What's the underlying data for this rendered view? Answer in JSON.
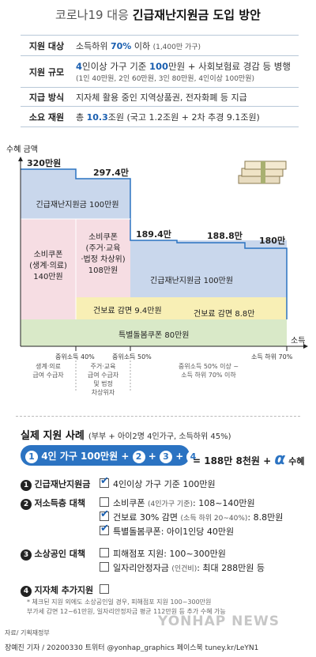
{
  "title": {
    "part1": "코로나19 대응",
    "part2": "긴급재난지원금 도입 방안"
  },
  "info": [
    {
      "label": "지원 대상",
      "value_prefix": "소득하위 ",
      "value_bold": "70%",
      "value_suffix": " 이하",
      "note": "(1,400만 가구)"
    },
    {
      "label": "지원 규모",
      "line1_bold": "4",
      "line1_mid": "인이상 가구 기준 ",
      "line1_bold2": "100",
      "line1_suffix": "만원 + 사회보험료 경감 등 병행",
      "line2": "(1인 40만원, 2인 60만원, 3인 80만원, 4인이상 100만원)"
    },
    {
      "label": "지급 방식",
      "value": "지자체 활용 중인 지역상품권, 전자화폐 등 지급"
    },
    {
      "label": "소요 재원",
      "value_prefix": "총 ",
      "value_bold": "10.3",
      "value_suffix": "조원 (국고 1.2조원 + 2차 추경 9.1조원)"
    }
  ],
  "chart": {
    "ylabel": "수혜 금액",
    "xlabel": "소득",
    "values": {
      "v1": "320만원",
      "v2": "297.4만",
      "v3": "189.4만",
      "v4": "188.8만",
      "v5": "180만"
    },
    "segments": {
      "emergency1": "긴급재난지원금 100만원",
      "emergency2": "긴급재난지원금 100만원",
      "coupon1": "소비쿠폰",
      "coupon1b": "(생계·의료)",
      "coupon1c": "140만원",
      "coupon2a": "소비쿠폰",
      "coupon2b": "(주거·교육",
      "coupon2c": "·법정 차상위)",
      "coupon2d": "108만원",
      "health1": "건보료 감면 9.4만원",
      "health2": "건보료 감면 8.8만",
      "care": "특별돌봄쿠폰 80만원"
    },
    "ticks": {
      "t1": "중위소득 40%",
      "t2": "중위소득 50%",
      "t3": "소득 하위 70%"
    },
    "groups": {
      "g1": [
        "생계·의료",
        "급여 수급자"
      ],
      "g2": [
        "주거·교육",
        "급여 수급자",
        "및 법정",
        "차상위자"
      ],
      "g3": [
        "중위소득 50% 이상 ~",
        "소득 하위 70% 이하"
      ]
    }
  },
  "example": {
    "title": "실제 지원 사례",
    "subtitle": "(부부 + 아이2명 4인가구, 소득하위 45%)",
    "f1": "1",
    "f1_text": "4인 가구 100만원 +",
    "f2": "2",
    "f3": "3",
    "f4": "4",
    "plus": "+",
    "result": "= 188만 8천원 +",
    "alpha": "α",
    "alpha_suffix": "수혜"
  },
  "items": {
    "i1_num": "1",
    "i1_title": "긴급재난지원금",
    "i1_opt": "4인이상 가구 기준 100만원",
    "i2_num": "2",
    "i2_title": "저소득층 대책",
    "i2_o1": "소비쿠폰",
    "i2_o1_note": "(4인가구 기준)",
    "i2_o1_val": ": 108~140만원",
    "i2_o2": "건보료 30% 감면",
    "i2_o2_note": "(소득 하위 20~40%)",
    "i2_o2_val": ": 8.8만원",
    "i2_o3": "특별돌봄쿠폰",
    "i2_o3_val": ": 아이1인당 40만원",
    "i3_num": "3",
    "i3_title": "소상공인 대책",
    "i3_o1": "피해점포 지원",
    "i3_o1_val": ": 100~300만원",
    "i3_o2": "일자리안정자금",
    "i3_o2_note": "(인건비)",
    "i3_o2_val": ": 최대 288만원 등",
    "i4_num": "4",
    "i4_title": "지자체 추가지원",
    "note1": "* 체크된 지원 외에도 소상공인일 경우, 피해점포 지원 100~300만원",
    "note2": "부가세 감면 12~61만원, 일자리안정자금 평균 112만원 등 추가 수혜 가능"
  },
  "source": "자료/ 기획재정부",
  "credit": "장예진 기자 / 20200330 트위터 @yonhap_graphics  페이스북 tuney.kr/LeYN1",
  "watermark": "YONHAP NEWS",
  "colors": {
    "accent": "#2b73c2",
    "emergency": "#c9d7ec",
    "coupon": "#f6dde3",
    "health": "#f8efb5",
    "care": "#d9e9c8"
  }
}
